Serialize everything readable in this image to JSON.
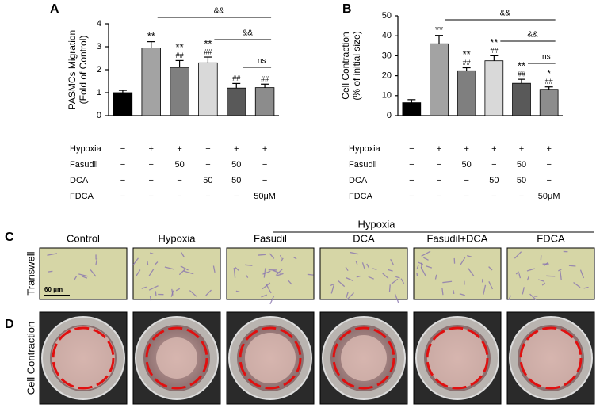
{
  "chart_data": [
    {
      "type": "bar",
      "panel": "A",
      "y_label": [
        "PASMCs Migration",
        "(Fold of Control)"
      ],
      "values": [
        1.0,
        2.95,
        2.1,
        2.3,
        1.2,
        1.22
      ],
      "errors": [
        0.1,
        0.27,
        0.3,
        0.25,
        0.2,
        0.15
      ],
      "colors": [
        "#000000",
        "#a3a3a3",
        "#7f7f7f",
        "#d9d9d9",
        "#595959",
        "#8c8c8c"
      ],
      "annotations": [
        [],
        [
          "**"
        ],
        [
          "**",
          "##"
        ],
        [
          "**",
          "##"
        ],
        [
          "##"
        ],
        [
          "##"
        ]
      ],
      "brackets": [
        "&&",
        "&&",
        "ns"
      ],
      "ylim": [
        0,
        4
      ],
      "yticks": [
        0,
        1,
        2,
        3,
        4
      ],
      "table": [
        {
          "label": "Hypoxia",
          "cells": [
            "−",
            "+",
            "+",
            "+",
            "+",
            "+"
          ]
        },
        {
          "label": "Fasudil",
          "cells": [
            "−",
            "−",
            "50",
            "−",
            "50",
            "−"
          ]
        },
        {
          "label": "DCA",
          "cells": [
            "−",
            "−",
            "−",
            "50",
            "50",
            "−"
          ]
        },
        {
          "label": "FDCA",
          "cells": [
            "−",
            "−",
            "−",
            "−",
            "−",
            "50μM"
          ]
        }
      ]
    },
    {
      "type": "bar",
      "panel": "B",
      "y_label": [
        "Cell Contraction",
        "(% of initial size)"
      ],
      "values": [
        6.5,
        36,
        22.5,
        27.5,
        16.2,
        13.2
      ],
      "errors": [
        1.5,
        4.2,
        1.5,
        2.5,
        2,
        1.2
      ],
      "colors": [
        "#000000",
        "#a3a3a3",
        "#7f7f7f",
        "#d9d9d9",
        "#595959",
        "#8c8c8c"
      ],
      "annotations": [
        [],
        [
          "**"
        ],
        [
          "**",
          "##"
        ],
        [
          "**",
          "##"
        ],
        [
          "**",
          "##"
        ],
        [
          "*",
          "##"
        ]
      ],
      "brackets": [
        "&&",
        "&&",
        "ns"
      ],
      "ylim": [
        0,
        50
      ],
      "yticks": [
        0,
        10,
        20,
        30,
        40,
        50
      ],
      "table": [
        {
          "label": "Hypoxia",
          "cells": [
            "−",
            "+",
            "+",
            "+",
            "+",
            "+"
          ]
        },
        {
          "label": "Fasudil",
          "cells": [
            "−",
            "−",
            "50",
            "−",
            "50",
            "−"
          ]
        },
        {
          "label": "DCA",
          "cells": [
            "−",
            "−",
            "−",
            "50",
            "50",
            "−"
          ]
        },
        {
          "label": "FDCA",
          "cells": [
            "−",
            "−",
            "−",
            "−",
            "−",
            "50μM"
          ]
        }
      ]
    }
  ],
  "panel_c": {
    "label": "C",
    "group": "Hypoxia",
    "columns": [
      "Control",
      "Hypoxia",
      "Fasudil",
      "DCA",
      "Fasudil+DCA",
      "FDCA"
    ],
    "row_label": "Transwell",
    "scale_bar": "60 μm"
  },
  "panel_d": {
    "label": "D",
    "row_label": "Cell Contraction"
  }
}
